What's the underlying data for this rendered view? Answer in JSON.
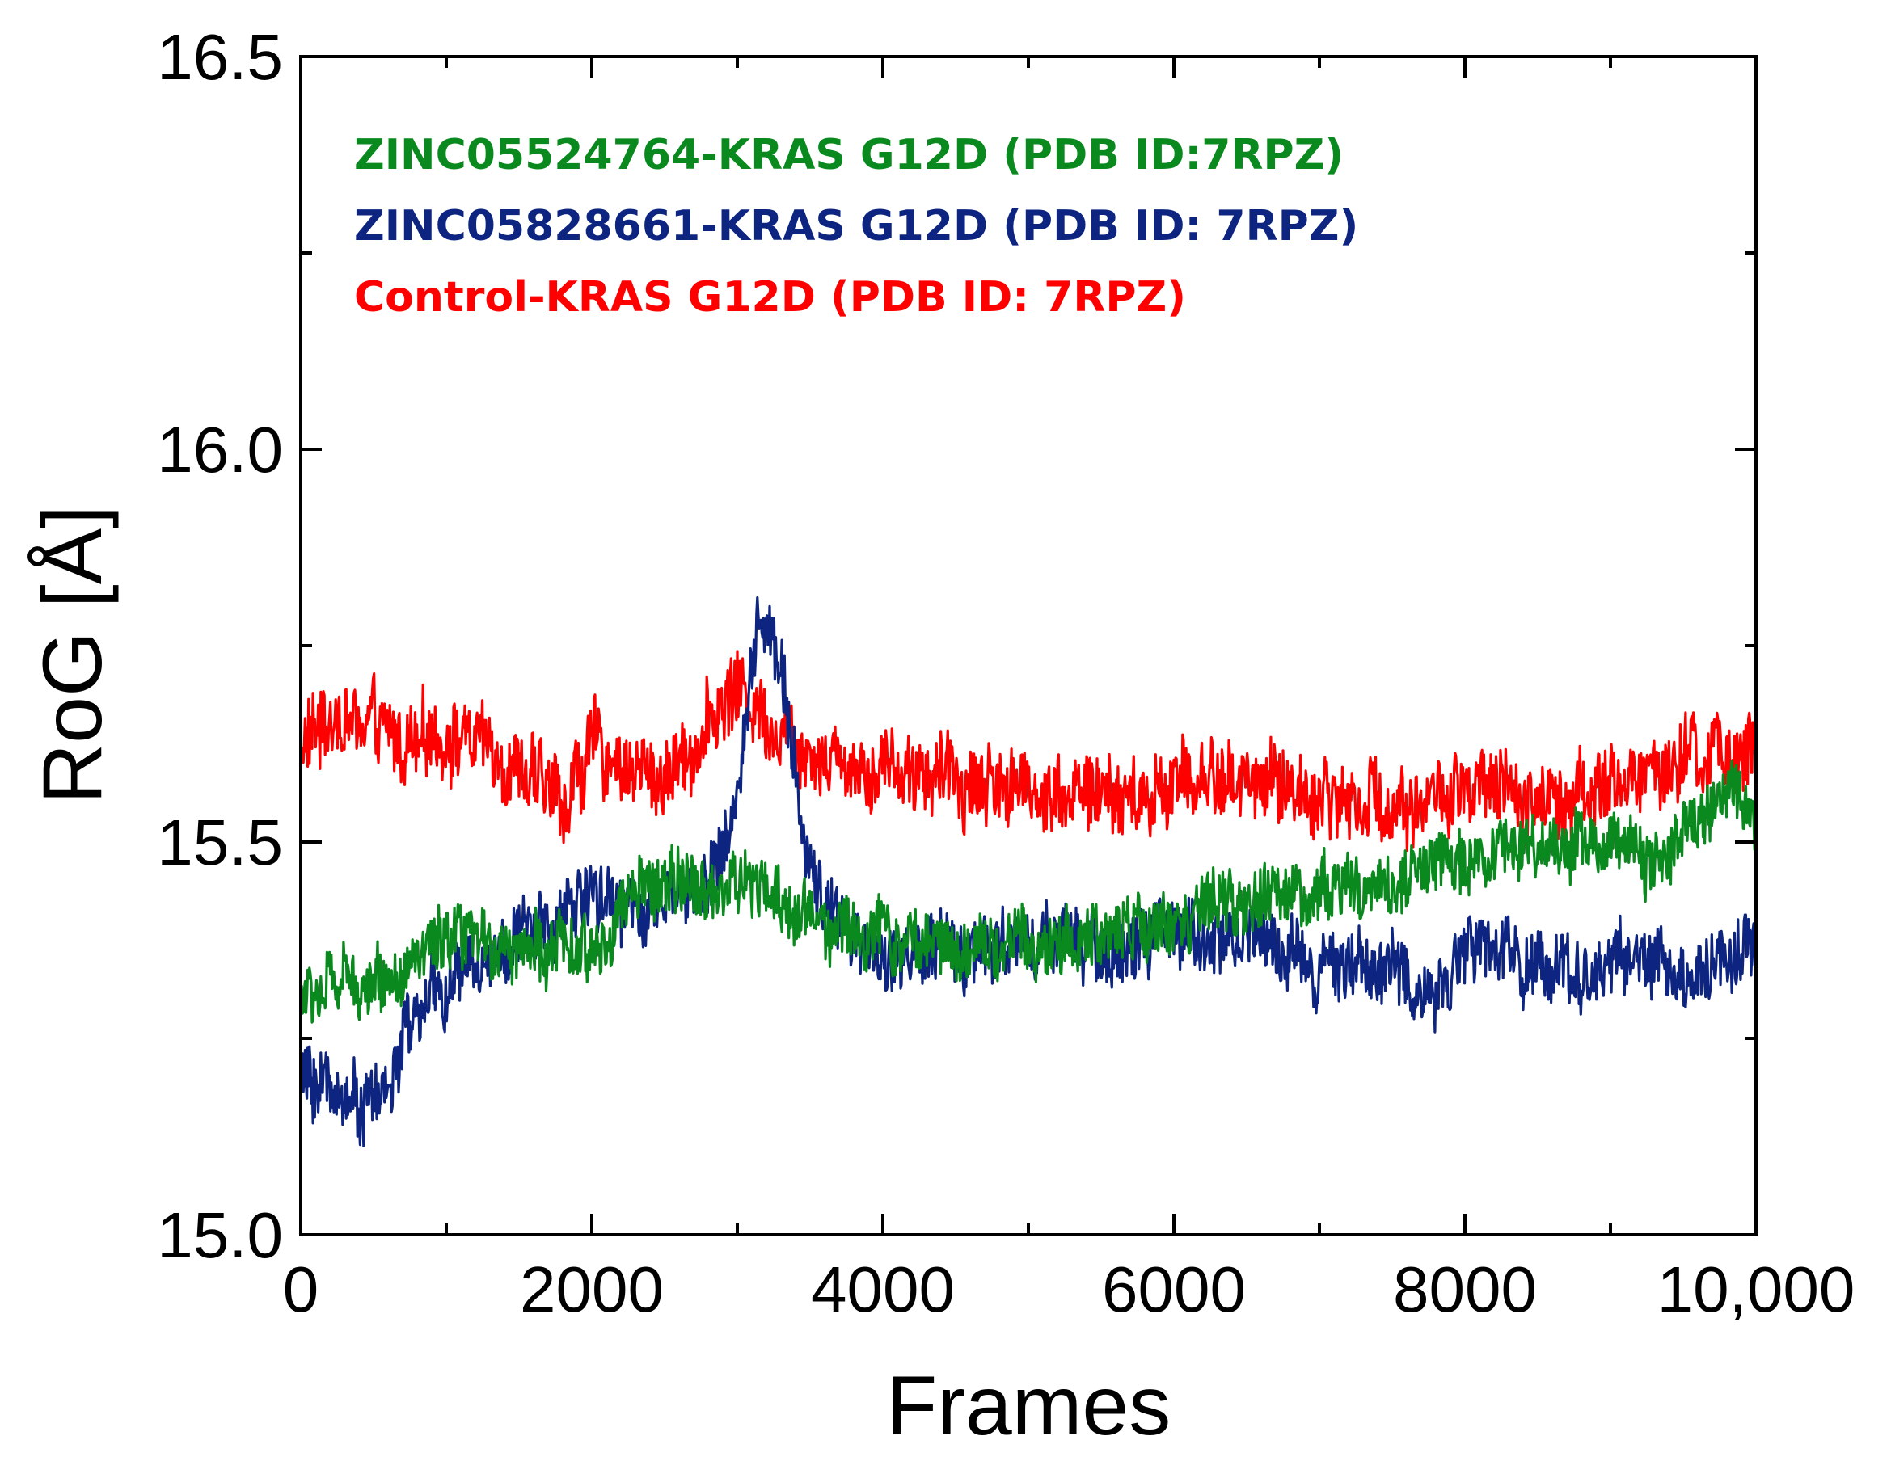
{
  "chart_data": {
    "type": "line",
    "title": "",
    "xlabel": "Frames",
    "ylabel": "RoG [Å]",
    "xlim": [
      0,
      10000
    ],
    "ylim": [
      15.0,
      16.5
    ],
    "x_ticks": [
      0,
      2000,
      4000,
      6000,
      8000,
      10000
    ],
    "x_tick_labels": [
      "0",
      "2000",
      "4000",
      "6000",
      "8000",
      "10,000"
    ],
    "y_ticks": [
      15.0,
      15.5,
      16.0,
      16.5
    ],
    "y_tick_labels": [
      "15.0",
      "15.5",
      "16.0",
      "16.5"
    ],
    "grid": false,
    "legend_position": "top-left",
    "series": [
      {
        "name": "Control-KRAS G12D (PDB ID: 7RPZ)",
        "color": "#ff0000",
        "noise": 0.045,
        "x": [
          0,
          200,
          500,
          800,
          1000,
          1300,
          1600,
          1800,
          2000,
          2200,
          2500,
          2800,
          3000,
          3200,
          3500,
          3800,
          4000,
          4500,
          5000,
          5500,
          5800,
          6000,
          6500,
          7000,
          7500,
          8000,
          8500,
          9000,
          9500,
          10000
        ],
        "values": [
          15.62,
          15.66,
          15.64,
          15.62,
          15.64,
          15.62,
          15.58,
          15.55,
          15.62,
          15.6,
          15.58,
          15.65,
          15.7,
          15.66,
          15.62,
          15.6,
          15.6,
          15.58,
          15.57,
          15.56,
          15.55,
          15.58,
          15.58,
          15.56,
          15.55,
          15.56,
          15.56,
          15.57,
          15.6,
          15.62
        ]
      },
      {
        "name": "ZINC05828661-KRAS G12D (PDB ID: 7RPZ)",
        "color": "#0d2580",
        "noise": 0.04,
        "x": [
          0,
          200,
          400,
          600,
          700,
          900,
          1200,
          1500,
          1800,
          2000,
          2200,
          2500,
          2800,
          3000,
          3150,
          3300,
          3500,
          3800,
          4000,
          4500,
          5000,
          5500,
          6000,
          6500,
          7000,
          7500,
          7700,
          8000,
          8500,
          8800,
          9200,
          9500,
          9800,
          10000
        ],
        "values": [
          15.2,
          15.19,
          15.17,
          15.18,
          15.25,
          15.3,
          15.34,
          15.38,
          15.4,
          15.45,
          15.42,
          15.42,
          15.45,
          15.55,
          15.8,
          15.72,
          15.45,
          15.38,
          15.35,
          15.36,
          15.38,
          15.36,
          15.38,
          15.38,
          15.35,
          15.34,
          15.3,
          15.36,
          15.35,
          15.33,
          15.36,
          15.32,
          15.36,
          15.38
        ]
      },
      {
        "name": "ZINC05524764-KRAS G12D (PDB ID:7RPZ)",
        "color": "#0a8a1e",
        "noise": 0.038,
        "x": [
          0,
          300,
          600,
          900,
          1200,
          1500,
          1800,
          2000,
          2200,
          2500,
          2800,
          3000,
          3300,
          3600,
          4000,
          4500,
          5000,
          5500,
          6000,
          6500,
          7000,
          7500,
          8000,
          8500,
          9000,
          9300,
          9600,
          9800,
          10000
        ],
        "values": [
          15.3,
          15.32,
          15.33,
          15.36,
          15.37,
          15.37,
          15.36,
          15.35,
          15.42,
          15.45,
          15.44,
          15.45,
          15.42,
          15.4,
          15.38,
          15.37,
          15.37,
          15.38,
          15.4,
          15.42,
          15.44,
          15.45,
          15.48,
          15.5,
          15.5,
          15.48,
          15.52,
          15.57,
          15.5
        ]
      }
    ]
  }
}
